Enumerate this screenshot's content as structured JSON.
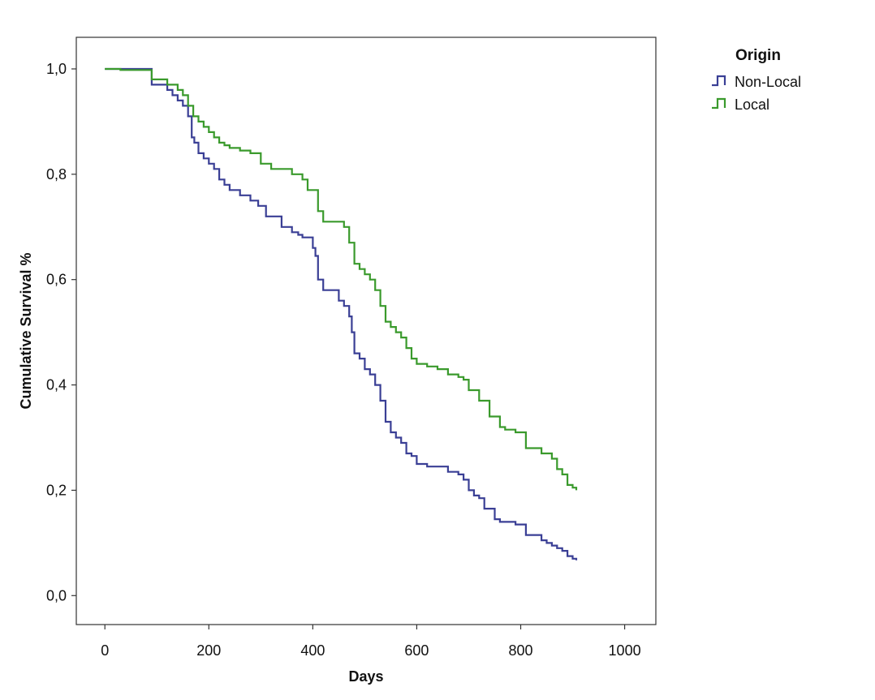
{
  "chart_data": {
    "type": "line",
    "step": true,
    "title": "",
    "xlabel": "Days",
    "ylabel": "Cumulative Survival %",
    "xlim": [
      -55,
      1060
    ],
    "ylim": [
      -0.055,
      1.06
    ],
    "x_ticks": [
      0,
      200,
      400,
      600,
      800,
      1000
    ],
    "x_tick_labels": [
      "0",
      "200",
      "400",
      "600",
      "800",
      "1000"
    ],
    "y_ticks": [
      0.0,
      0.2,
      0.4,
      0.6,
      0.8,
      1.0
    ],
    "y_tick_labels": [
      "0,0",
      "0,2",
      "0,4",
      "0,6",
      "0,8",
      "1,0"
    ],
    "grid": false,
    "legend": {
      "title": "Origin",
      "position": "outside-right-top"
    },
    "series": [
      {
        "name": "Non-Local",
        "color": "#3a3f95",
        "x": [
          0,
          90,
          120,
          130,
          140,
          150,
          160,
          167,
          172,
          180,
          190,
          200,
          210,
          220,
          230,
          240,
          260,
          280,
          295,
          310,
          340,
          360,
          372,
          380,
          400,
          405,
          410,
          420,
          450,
          460,
          470,
          475,
          480,
          490,
          500,
          510,
          520,
          530,
          540,
          550,
          560,
          570,
          580,
          590,
          600,
          620,
          660,
          680,
          690,
          700,
          710,
          720,
          730,
          750,
          760,
          790,
          810,
          840,
          850,
          860,
          870,
          880,
          890,
          900,
          907
        ],
        "y": [
          1.0,
          0.97,
          0.96,
          0.95,
          0.94,
          0.93,
          0.91,
          0.87,
          0.86,
          0.84,
          0.83,
          0.82,
          0.81,
          0.79,
          0.78,
          0.77,
          0.76,
          0.75,
          0.74,
          0.72,
          0.7,
          0.69,
          0.685,
          0.68,
          0.66,
          0.645,
          0.6,
          0.58,
          0.56,
          0.55,
          0.53,
          0.5,
          0.46,
          0.45,
          0.43,
          0.42,
          0.4,
          0.37,
          0.33,
          0.31,
          0.3,
          0.29,
          0.27,
          0.265,
          0.25,
          0.245,
          0.235,
          0.23,
          0.22,
          0.2,
          0.19,
          0.185,
          0.165,
          0.145,
          0.14,
          0.135,
          0.115,
          0.105,
          0.1,
          0.095,
          0.09,
          0.085,
          0.075,
          0.07,
          0.067
        ]
      },
      {
        "name": "Local",
        "color": "#3a9a2c",
        "x": [
          0,
          30,
          90,
          120,
          140,
          150,
          160,
          170,
          180,
          190,
          200,
          210,
          220,
          230,
          240,
          260,
          280,
          300,
          320,
          360,
          380,
          390,
          410,
          420,
          460,
          470,
          480,
          490,
          500,
          510,
          520,
          530,
          540,
          550,
          560,
          570,
          580,
          590,
          600,
          620,
          640,
          660,
          680,
          690,
          700,
          720,
          740,
          760,
          770,
          790,
          810,
          840,
          860,
          870,
          880,
          890,
          900,
          907
        ],
        "y": [
          1.0,
          0.998,
          0.98,
          0.97,
          0.96,
          0.95,
          0.93,
          0.91,
          0.9,
          0.89,
          0.88,
          0.87,
          0.86,
          0.855,
          0.85,
          0.845,
          0.84,
          0.82,
          0.81,
          0.8,
          0.79,
          0.77,
          0.73,
          0.71,
          0.7,
          0.67,
          0.63,
          0.62,
          0.61,
          0.6,
          0.58,
          0.55,
          0.52,
          0.51,
          0.5,
          0.49,
          0.47,
          0.45,
          0.44,
          0.435,
          0.43,
          0.42,
          0.415,
          0.41,
          0.39,
          0.37,
          0.34,
          0.32,
          0.315,
          0.31,
          0.28,
          0.27,
          0.26,
          0.24,
          0.23,
          0.21,
          0.205,
          0.2
        ]
      }
    ]
  }
}
